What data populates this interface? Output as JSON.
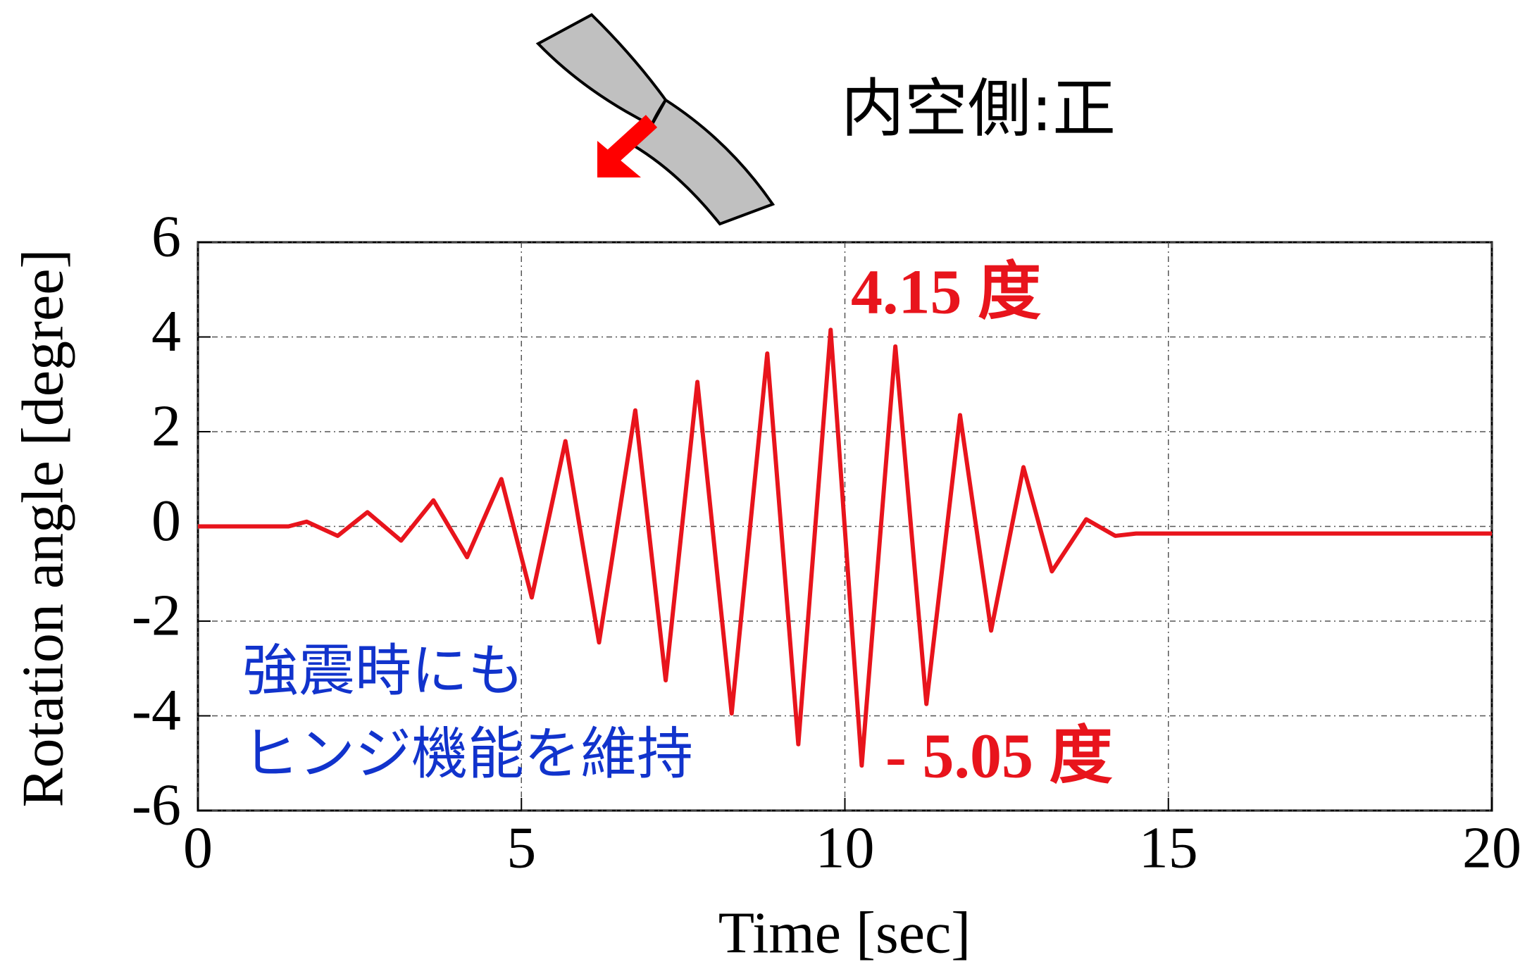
{
  "chart_data": {
    "type": "line",
    "title": "内空側:正",
    "xlabel": "Time [sec]",
    "ylabel": "Rotation angle [degree]",
    "annotations": [
      "4.15 度",
      "- 5.05 度",
      "強震時にも",
      "ヒンジ機能を維持"
    ],
    "x": [
      0,
      1.4,
      1.68,
      2.16,
      2.62,
      3.14,
      3.64,
      4.16,
      4.69,
      5.16,
      5.68,
      6.2,
      6.76,
      7.23,
      7.72,
      8.25,
      8.8,
      9.28,
      9.78,
      10.26,
      10.78,
      11.26,
      11.78,
      12.26,
      12.76,
      13.2,
      13.73,
      14.18,
      14.5,
      20
    ],
    "series": [
      {
        "color": "#e8141c",
        "values": [
          0,
          0,
          0.1,
          -0.2,
          0.3,
          -0.3,
          0.55,
          -0.65,
          1.0,
          -1.5,
          1.8,
          -2.45,
          2.45,
          -3.25,
          3.05,
          -3.95,
          3.65,
          -4.6,
          4.15,
          -5.05,
          3.8,
          -3.75,
          2.35,
          -2.2,
          1.25,
          -0.95,
          0.15,
          -0.2,
          -0.15,
          -0.15
        ]
      }
    ],
    "xlim": [
      0,
      20
    ],
    "xticks": [
      0,
      5,
      10,
      15,
      20
    ],
    "ylim": [
      -6,
      6
    ],
    "yticks": [
      -6,
      -4,
      -2,
      0,
      2,
      4,
      6
    ],
    "grid": true
  }
}
